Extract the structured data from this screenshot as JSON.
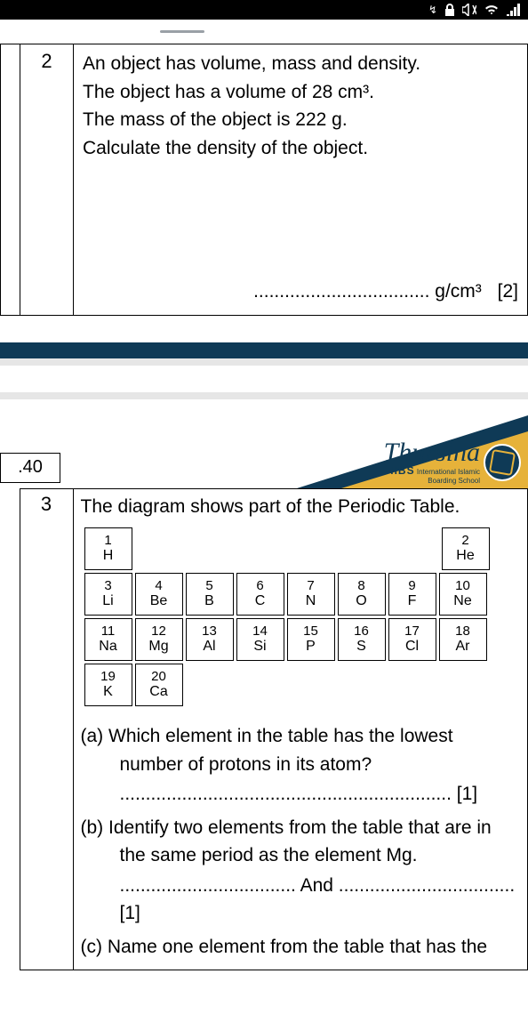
{
  "status": {
    "icons": [
      "link",
      "lock",
      "mute",
      "wifi",
      "signal"
    ]
  },
  "q2": {
    "number": "2",
    "lines": [
      "An object has volume, mass and density.",
      "The object has a volume of 28 cm³.",
      "The mass of the object is 222 g.",
      "Calculate the density of the object."
    ],
    "answer_dots": "..................................",
    "unit": "g/cm³",
    "marks": "[2]"
  },
  "page_number": ".40",
  "school": {
    "name": "Thursina",
    "iibs": "IIBS",
    "sub1": "International Islamic",
    "sub2": "Boarding School"
  },
  "q3": {
    "number": "3",
    "intro": "The diagram shows part of the Periodic Table.",
    "periodic_table": {
      "row1": [
        {
          "n": "1",
          "s": "H"
        },
        null,
        null,
        null,
        null,
        null,
        null,
        {
          "n": "2",
          "s": "He"
        }
      ],
      "row2": [
        {
          "n": "3",
          "s": "Li"
        },
        {
          "n": "4",
          "s": "Be"
        },
        {
          "n": "5",
          "s": "B"
        },
        {
          "n": "6",
          "s": "C"
        },
        {
          "n": "7",
          "s": "N"
        },
        {
          "n": "8",
          "s": "O"
        },
        {
          "n": "9",
          "s": "F"
        },
        {
          "n": "10",
          "s": "Ne"
        }
      ],
      "row3": [
        {
          "n": "11",
          "s": "Na"
        },
        {
          "n": "12",
          "s": "Mg"
        },
        {
          "n": "13",
          "s": "Al"
        },
        {
          "n": "14",
          "s": "Si"
        },
        {
          "n": "15",
          "s": "P"
        },
        {
          "n": "16",
          "s": "S"
        },
        {
          "n": "17",
          "s": "Cl"
        },
        {
          "n": "18",
          "s": "Ar"
        }
      ],
      "row4": [
        {
          "n": "19",
          "s": "K"
        },
        {
          "n": "20",
          "s": "Ca"
        }
      ]
    },
    "parts": {
      "a": {
        "label": "(a) Which element in the table has the lowest",
        "label2": "number of protons in its atom?",
        "dots": "................................................................",
        "marks": "[1]"
      },
      "b": {
        "label": "(b) Identify two elements from the table that are in",
        "label2": "the same period as the element Mg.",
        "dots1": "..................................",
        "and": "And",
        "dots2": "..................................",
        "marks": "[1]"
      },
      "c": {
        "label": "(c) Name one element from the table that has the"
      }
    }
  }
}
